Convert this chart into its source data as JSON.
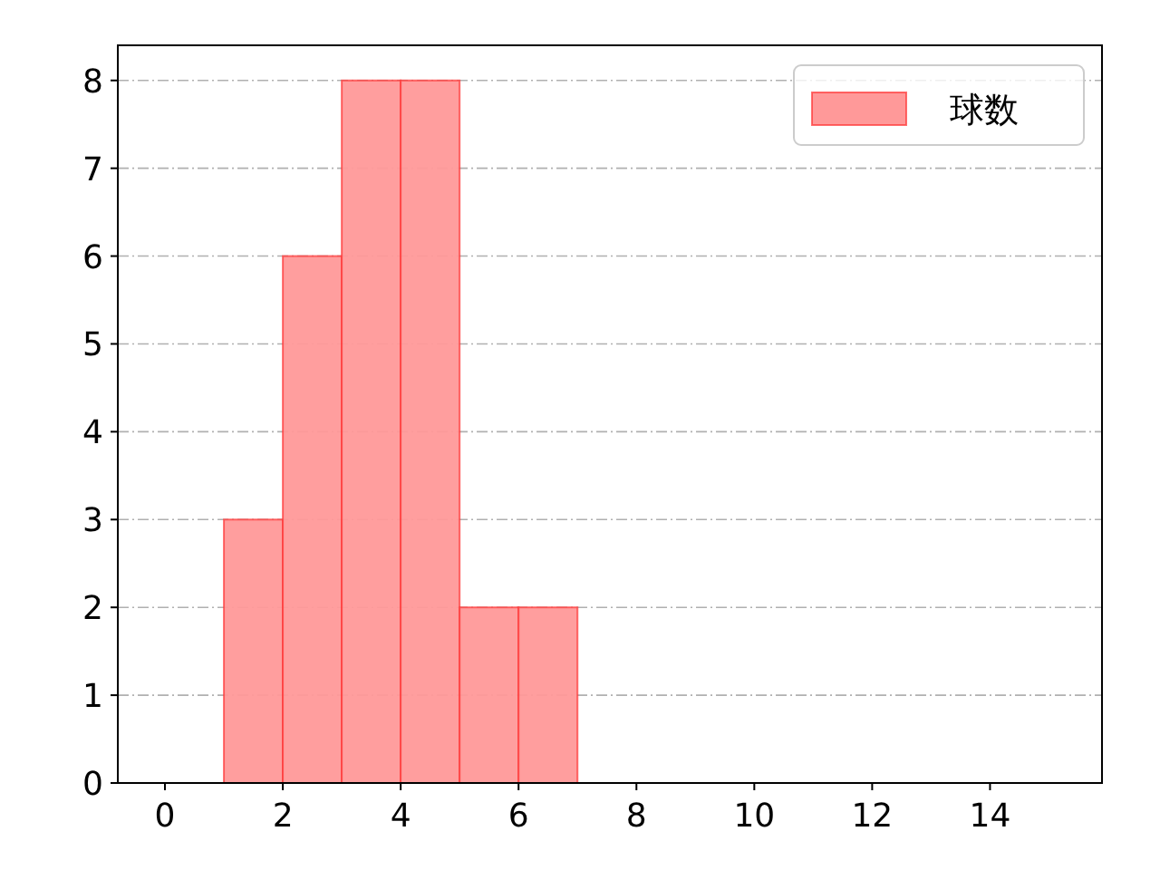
{
  "chart_data": {
    "type": "histogram",
    "bins": [
      1,
      2,
      3,
      4,
      5,
      6,
      7
    ],
    "series": [
      {
        "name": "球数",
        "color": "#ff9999",
        "values": [
          3,
          6,
          8,
          8,
          2,
          2
        ]
      }
    ],
    "xlim": [
      -0.8,
      15.9
    ],
    "ylim": [
      0,
      8.4
    ],
    "xticks": [
      0,
      2,
      4,
      6,
      8,
      10,
      12,
      14
    ],
    "yticks": [
      0,
      1,
      2,
      3,
      4,
      5,
      6,
      7,
      8
    ],
    "grid": "y",
    "legend": "top right"
  }
}
